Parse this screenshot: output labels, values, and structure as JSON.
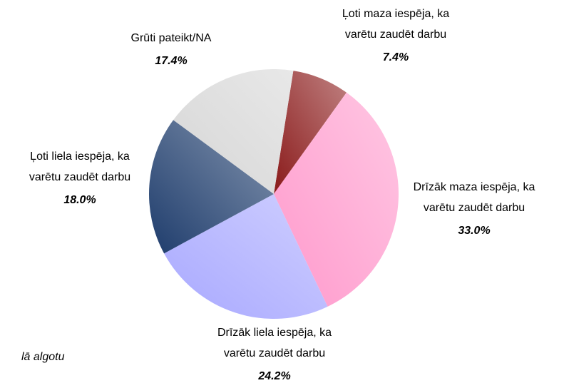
{
  "chart_data": {
    "type": "pie",
    "categories": [
      [
        "Ļoti maza iespēja, ka",
        "varētu zaudēt darbu"
      ],
      [
        "Drīzāk maza iespēja, ka",
        "varētu zaudēt darbu"
      ],
      [
        "Drīzāk liela iespēja, ka",
        "varētu zaudēt darbu"
      ],
      [
        "Ļoti liela iespēja, ka",
        "varētu zaudēt darbu"
      ],
      [
        "Grūti pateikt/NA"
      ]
    ],
    "values": [
      7.4,
      33.0,
      24.2,
      18.0,
      17.4
    ],
    "value_labels": [
      "7.4%",
      "33.0%",
      "24.2%",
      "18.0%",
      "17.4%"
    ],
    "colors": [
      "#8a1a1a",
      "#ff99cc",
      "#a8a8ff",
      "#1e3c6c",
      "#d6d6d6"
    ],
    "annotation": "lā algotu"
  }
}
